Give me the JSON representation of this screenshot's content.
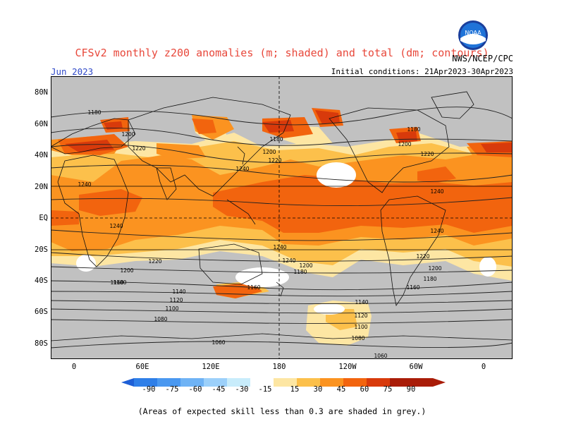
{
  "header": {
    "title": "CFSv2 monthly z200 anomalies (m; shaded) and total (dm; contours)",
    "month": "Jun 2023",
    "initial_conditions": "Initial conditions: 21Apr2023-30Apr2023",
    "agency": "NWS/NCEP/CPC",
    "logo_text": "NOAA"
  },
  "axes": {
    "lat_labels": [
      "80N",
      "60N",
      "40N",
      "20N",
      "EQ",
      "20S",
      "40S",
      "60S",
      "80S"
    ],
    "lon_labels": [
      "0",
      "60E",
      "120E",
      "180",
      "120W",
      "60W",
      "0"
    ]
  },
  "contour_labels": [
    "1180",
    "1200",
    "1220",
    "1240",
    "1240",
    "1240",
    "1240",
    "1240",
    "1220",
    "1200",
    "1180",
    "1160",
    "1140",
    "1120",
    "1100",
    "1080",
    "1060",
    "1200",
    "1220",
    "1180",
    "1200",
    "1220",
    "1240",
    "1180",
    "1200",
    "1220",
    "1240",
    "1200",
    "1180",
    "1160",
    "1140",
    "1120",
    "1100",
    "1080",
    "1060",
    "1180",
    "1160"
  ],
  "colorbar": {
    "labels": [
      "-90",
      "-75",
      "-60",
      "-45",
      "-30",
      "-15",
      "15",
      "30",
      "45",
      "60",
      "75",
      "90"
    ],
    "colors": [
      "#1e5fd6",
      "#2f7fe8",
      "#4a98f0",
      "#6fb3f5",
      "#9cd0fa",
      "#c8ecfb",
      "#ffffff",
      "#fde6a3",
      "#fcc04b",
      "#fb9320",
      "#f2640e",
      "#d83a0b",
      "#a91c08"
    ]
  },
  "footnote": "(Areas of expected skill less than 0.3 are shaded in grey.)",
  "colors": {
    "grey": "#c1c1c1",
    "band15": "#fde6a3",
    "band30": "#fcc04b",
    "band45": "#fb9320",
    "band60": "#f2640e",
    "band75": "#d83a0b",
    "title": "#e8483b",
    "month": "#2f49c8"
  }
}
